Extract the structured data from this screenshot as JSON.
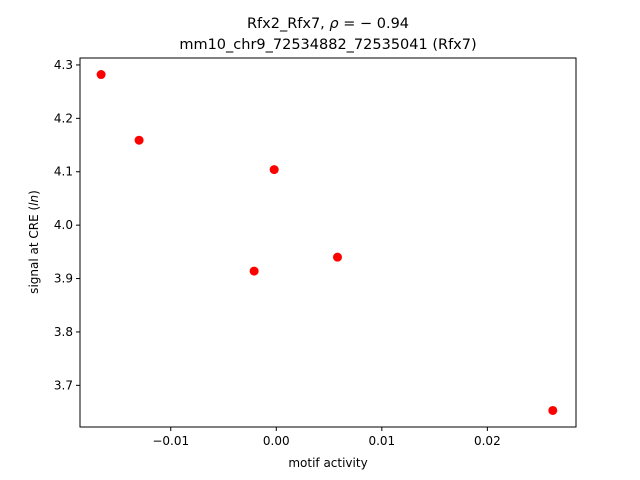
{
  "chart_data": {
    "type": "scatter",
    "title_line1_prefix": "Rfx2_Rfx7, ",
    "title_rho": "ρ",
    "title_line1_suffix": " = − 0.94",
    "title_line2": "mm10_chr9_72534882_72535041 (Rfx7)",
    "xlabel": "motif activity",
    "ylabel_prefix": "signal at CRE (",
    "ylabel_italic": "ln",
    "ylabel_suffix": ")",
    "xlim": [
      -0.0186,
      0.0284
    ],
    "ylim": [
      3.622,
      4.313
    ],
    "xticks": [
      -0.01,
      0.0,
      0.01,
      0.02
    ],
    "xtick_labels": [
      "−0.01",
      "0.00",
      "0.01",
      "0.02"
    ],
    "yticks": [
      3.7,
      3.8,
      3.9,
      4.0,
      4.1,
      4.2,
      4.3
    ],
    "ytick_labels": [
      "3.7",
      "3.8",
      "3.9",
      "4.0",
      "4.1",
      "4.2",
      "4.3"
    ],
    "marker_color": "#ff0000",
    "grid": false,
    "points": [
      {
        "x": -0.0166,
        "y": 4.282
      },
      {
        "x": -0.013,
        "y": 4.159
      },
      {
        "x": -0.0021,
        "y": 3.914
      },
      {
        "x": -0.0002,
        "y": 4.104
      },
      {
        "x": 0.0058,
        "y": 3.94
      },
      {
        "x": 0.0262,
        "y": 3.653
      }
    ]
  }
}
